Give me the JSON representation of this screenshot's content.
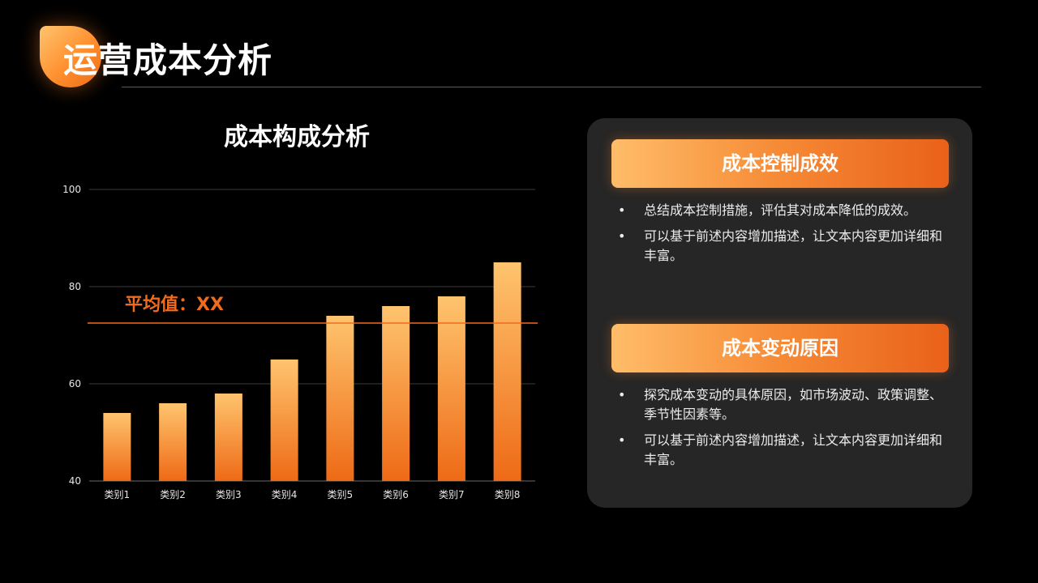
{
  "page": {
    "title": "运营成本分析"
  },
  "chart_data": {
    "type": "bar",
    "title": "成本构成分析",
    "categories": [
      "类别1",
      "类别2",
      "类别3",
      "类别4",
      "类别5",
      "类别6",
      "类别7",
      "类别8"
    ],
    "values": [
      54,
      56,
      58,
      65,
      74,
      76,
      78,
      85
    ],
    "ylim": [
      40,
      100
    ],
    "yticks": [
      40,
      60,
      80,
      100
    ],
    "grid": true,
    "average_line": {
      "label": "平均值：XX",
      "value": 72.5
    },
    "colors": {
      "bar_top": "#ffc46e",
      "bar_bottom": "#ee6a16",
      "avg_line": "#f26b1d"
    }
  },
  "panel": {
    "sections": [
      {
        "heading": "成本控制成效",
        "bullets": [
          "总结成本控制措施，评估其对成本降低的成效。",
          "可以基于前述内容增加描述，让文本内容更加详细和丰富。"
        ]
      },
      {
        "heading": "成本变动原因",
        "bullets": [
          "探究成本变动的具体原因，如市场波动、政策调整、季节性因素等。",
          "可以基于前述内容增加描述，让文本内容更加详细和丰富。"
        ]
      }
    ]
  }
}
